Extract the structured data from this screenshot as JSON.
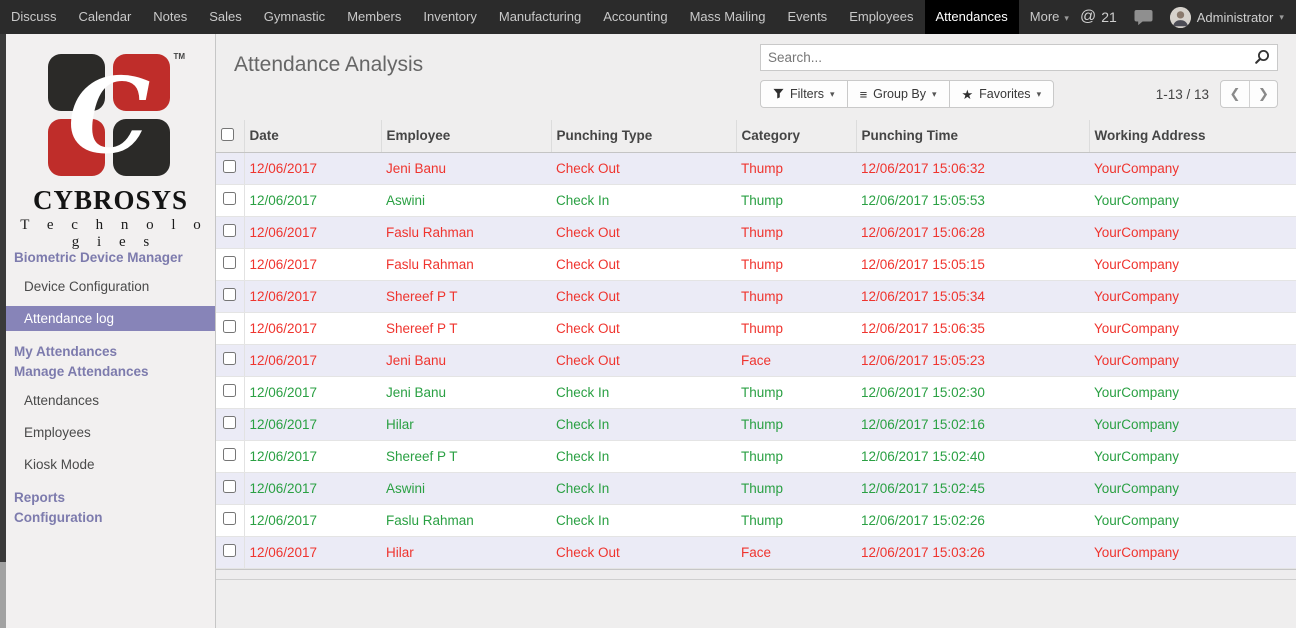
{
  "topbar": {
    "menus": [
      {
        "label": "Discuss"
      },
      {
        "label": "Calendar"
      },
      {
        "label": "Notes"
      },
      {
        "label": "Sales"
      },
      {
        "label": "Gymnastic"
      },
      {
        "label": "Members"
      },
      {
        "label": "Inventory"
      },
      {
        "label": "Manufacturing"
      },
      {
        "label": "Accounting"
      },
      {
        "label": "Mass Mailing"
      },
      {
        "label": "Events"
      },
      {
        "label": "Employees"
      },
      {
        "label": "Attendances"
      },
      {
        "label": "More",
        "caret": true
      }
    ],
    "active_menu": "Attendances",
    "activity_icon": "@",
    "activity_count": "21",
    "user": "Administrator"
  },
  "sidebar": {
    "logo": {
      "brand": "CYBROSYS",
      "sub": "T e c h n o l o g i e s",
      "tm": "TM"
    },
    "items": [
      {
        "type": "header",
        "label": "Biometric Device Manager"
      },
      {
        "type": "item",
        "label": "Device Configuration"
      },
      {
        "type": "item",
        "label": "Attendance log",
        "active": true
      },
      {
        "type": "header",
        "label": "My Attendances"
      },
      {
        "type": "header",
        "label": "Manage Attendances"
      },
      {
        "type": "item",
        "label": "Attendances"
      },
      {
        "type": "item",
        "label": "Employees"
      },
      {
        "type": "item",
        "label": "Kiosk Mode"
      },
      {
        "type": "header",
        "label": "Reports"
      },
      {
        "type": "header",
        "label": "Configuration"
      }
    ]
  },
  "control_panel": {
    "title": "Attendance Analysis",
    "search_placeholder": "Search...",
    "filters_label": "Filters",
    "group_by_label": "Group By",
    "favorites_label": "Favorites",
    "group_by_icon": "≡",
    "favorites_icon": "★",
    "pager": {
      "range": "1-13 / 13",
      "prev": "❮",
      "next": "❯"
    }
  },
  "table": {
    "columns": [
      "Date",
      "Employee",
      "Punching Type",
      "Category",
      "Punching Time",
      "Working Address"
    ],
    "rows": [
      {
        "date": "12/06/2017",
        "employee": "Jeni Banu",
        "punching_type": "Check Out",
        "category": "Thump",
        "punching_time": "12/06/2017 15:06:32",
        "working_address": "YourCompany",
        "status": "check_out"
      },
      {
        "date": "12/06/2017",
        "employee": "Aswini",
        "punching_type": "Check In",
        "category": "Thump",
        "punching_time": "12/06/2017 15:05:53",
        "working_address": "YourCompany",
        "status": "check_in"
      },
      {
        "date": "12/06/2017",
        "employee": "Faslu Rahman",
        "punching_type": "Check Out",
        "category": "Thump",
        "punching_time": "12/06/2017 15:06:28",
        "working_address": "YourCompany",
        "status": "check_out"
      },
      {
        "date": "12/06/2017",
        "employee": "Faslu Rahman",
        "punching_type": "Check Out",
        "category": "Thump",
        "punching_time": "12/06/2017 15:05:15",
        "working_address": "YourCompany",
        "status": "check_out"
      },
      {
        "date": "12/06/2017",
        "employee": "Shereef P T",
        "punching_type": "Check Out",
        "category": "Thump",
        "punching_time": "12/06/2017 15:05:34",
        "working_address": "YourCompany",
        "status": "check_out"
      },
      {
        "date": "12/06/2017",
        "employee": "Shereef P T",
        "punching_type": "Check Out",
        "category": "Thump",
        "punching_time": "12/06/2017 15:06:35",
        "working_address": "YourCompany",
        "status": "check_out"
      },
      {
        "date": "12/06/2017",
        "employee": "Jeni Banu",
        "punching_type": "Check Out",
        "category": "Face",
        "punching_time": "12/06/2017 15:05:23",
        "working_address": "YourCompany",
        "status": "check_out"
      },
      {
        "date": "12/06/2017",
        "employee": "Jeni Banu",
        "punching_type": "Check In",
        "category": "Thump",
        "punching_time": "12/06/2017 15:02:30",
        "working_address": "YourCompany",
        "status": "check_in"
      },
      {
        "date": "12/06/2017",
        "employee": "Hilar",
        "punching_type": "Check In",
        "category": "Thump",
        "punching_time": "12/06/2017 15:02:16",
        "working_address": "YourCompany",
        "status": "check_in"
      },
      {
        "date": "12/06/2017",
        "employee": "Shereef P T",
        "punching_type": "Check In",
        "category": "Thump",
        "punching_time": "12/06/2017 15:02:40",
        "working_address": "YourCompany",
        "status": "check_in"
      },
      {
        "date": "12/06/2017",
        "employee": "Aswini",
        "punching_type": "Check In",
        "category": "Thump",
        "punching_time": "12/06/2017 15:02:45",
        "working_address": "YourCompany",
        "status": "check_in"
      },
      {
        "date": "12/06/2017",
        "employee": "Faslu Rahman",
        "punching_type": "Check In",
        "category": "Thump",
        "punching_time": "12/06/2017 15:02:26",
        "working_address": "YourCompany",
        "status": "check_in"
      },
      {
        "date": "12/06/2017",
        "employee": "Hilar",
        "punching_type": "Check Out",
        "category": "Face",
        "punching_time": "12/06/2017 15:03:26",
        "working_address": "YourCompany",
        "status": "check_out"
      }
    ]
  },
  "colors": {
    "accent_purple": "#7d7bad",
    "selected_purple": "#8784b8",
    "check_in_green": "#2aa043",
    "check_out_red": "#ef342e",
    "row_stripe": "#ebebf6",
    "brand_red": "#bf2d2a",
    "brand_black": "#2b2a28"
  }
}
